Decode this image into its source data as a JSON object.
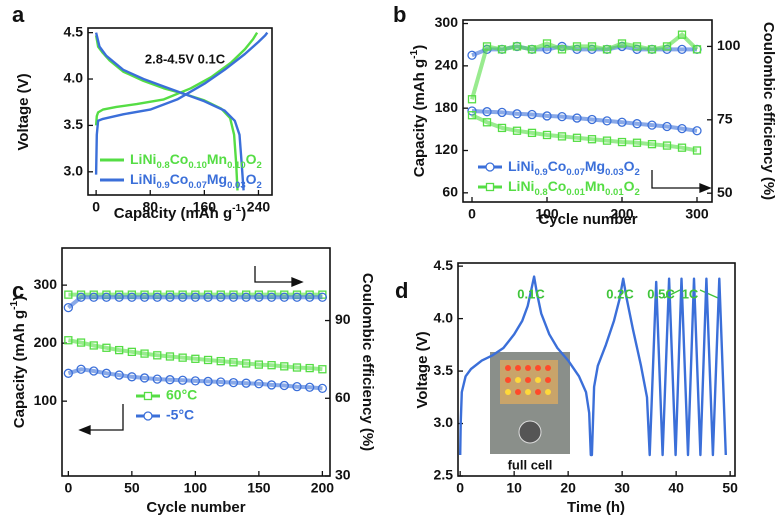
{
  "chart_data": [
    {
      "type": "line",
      "panel_label": "a",
      "xlabel": "Capacity (mAh g-1)",
      "ylabel": "Voltage (V)",
      "annotations": [
        "2.8-4.5V  0.1C"
      ],
      "legend": "lower left",
      "xlim": [
        -12,
        260
      ],
      "xticks": [
        0,
        80,
        160,
        240
      ],
      "ylim": [
        2.75,
        4.55
      ],
      "yticks": [
        {
          "value": 3,
          "label": "3.0"
        },
        3.5,
        {
          "value": 4,
          "label": "4.0"
        },
        4.5
      ],
      "series": [
        {
          "name": "LiNi0.8Co0.10Mn0.10O2",
          "color": "#55dd44",
          "x": [
            0,
            1,
            3,
            10,
            30,
            60,
            100,
            140,
            170,
            200,
            220,
            232,
            238,
            null,
            0,
            3,
            10,
            20,
            40,
            70,
            100,
            130,
            160,
            185,
            198,
            204,
            207,
            209
          ],
          "values": [
            3.5,
            3.6,
            3.64,
            3.67,
            3.7,
            3.73,
            3.78,
            3.9,
            4.02,
            4.18,
            4.32,
            4.43,
            4.5,
            null,
            4.47,
            4.35,
            4.28,
            4.2,
            4.08,
            3.98,
            3.9,
            3.84,
            3.77,
            3.68,
            3.58,
            3.4,
            3.1,
            2.8
          ]
        },
        {
          "name": "LiNi0.9Co0.07Mg0.03O2",
          "color": "#3b6fd9",
          "x": [
            0,
            1,
            3,
            10,
            40,
            80,
            120,
            160,
            190,
            220,
            240,
            250,
            253,
            null,
            0,
            5,
            15,
            40,
            70,
            100,
            130,
            160,
            190,
            205,
            212,
            215,
            217,
            218
          ],
          "values": [
            2.97,
            3.4,
            3.55,
            3.57,
            3.62,
            3.67,
            3.78,
            3.95,
            4.1,
            4.27,
            4.4,
            4.47,
            4.5,
            null,
            4.5,
            4.35,
            4.25,
            4.1,
            4.0,
            3.92,
            3.84,
            3.76,
            3.66,
            3.55,
            3.4,
            3.1,
            2.9,
            2.8
          ]
        }
      ]
    },
    {
      "type": "scatter",
      "panel_label": "b",
      "xlabel": "Cycle number",
      "ylabel": "Capacity (mAh g-1)",
      "y2label": "Coulombic efficiency (%)",
      "legend": "lower left",
      "x": [
        0,
        20,
        40,
        60,
        80,
        100,
        120,
        140,
        160,
        180,
        200,
        220,
        240,
        260,
        280,
        300
      ],
      "xlim": [
        -12,
        320
      ],
      "xticks": [
        0,
        100,
        200,
        300
      ],
      "ylim": [
        47,
        305
      ],
      "yticks": [
        60,
        120,
        180,
        240,
        300
      ],
      "y2lim": [
        47,
        109
      ],
      "y2ticks": [
        50,
        75,
        100
      ],
      "series": [
        {
          "name": "LiNi0.9Co0.07Mg0.03O2",
          "color": "#3b6fd9",
          "marker": "circle",
          "values": [
            176,
            175,
            174,
            172,
            171,
            169,
            168,
            166,
            164,
            162,
            160,
            158,
            156,
            154,
            151,
            148
          ]
        },
        {
          "name": "LiNi0.8Co0.01Mn0.01O2",
          "color": "#55dd44",
          "marker": "square",
          "values": [
            170,
            160,
            152,
            148,
            145,
            142,
            140,
            138,
            136,
            134,
            132,
            131,
            129,
            127,
            124,
            120
          ]
        },
        {
          "color": "#3b6fd9",
          "marker": "circle",
          "axis": "y2",
          "values": [
            97,
            99,
            99,
            100,
            99,
            99,
            100,
            99,
            99,
            99,
            100,
            99,
            99,
            99,
            99,
            99
          ]
        },
        {
          "color": "#55dd44",
          "marker": "square",
          "axis": "y2",
          "values": [
            82,
            100,
            99,
            100,
            99,
            101,
            99,
            100,
            100,
            99,
            101,
            100,
            99,
            100,
            104,
            99
          ]
        }
      ]
    },
    {
      "type": "scatter",
      "panel_label": "c",
      "xlabel": "Cycle number",
      "ylabel": "Capacity (mAh g-1)",
      "y2label": "Coulombic efficiency (%)",
      "legend": "lower center",
      "x": [
        0,
        10,
        20,
        30,
        40,
        50,
        60,
        70,
        80,
        90,
        100,
        110,
        120,
        130,
        140,
        150,
        160,
        170,
        180,
        190,
        200
      ],
      "xlim": [
        -5,
        206
      ],
      "xticks": [
        0,
        50,
        100,
        150,
        200
      ],
      "ylim": [
        -29,
        364
      ],
      "yticks": [
        100,
        200,
        300
      ],
      "y2lim": [
        30,
        118
      ],
      "y2ticks": [
        30,
        60,
        90
      ],
      "series": [
        {
          "name": "60°C",
          "color": "#55dd44",
          "marker": "square",
          "values": [
            205,
            201,
            196,
            192,
            188,
            185,
            182,
            179,
            177,
            175,
            173,
            171,
            169,
            167,
            165,
            163,
            162,
            160,
            158,
            157,
            155
          ]
        },
        {
          "name": "-5°C",
          "color": "#3b6fd9",
          "marker": "circle",
          "values": [
            148,
            155,
            152,
            148,
            145,
            142,
            140,
            138,
            137,
            136,
            135,
            134,
            133,
            132,
            131,
            130,
            128,
            127,
            125,
            124,
            122
          ]
        },
        {
          "color": "#55dd44",
          "marker": "square",
          "axis": "y2",
          "values": [
            100,
            100,
            100,
            100,
            100,
            100,
            100,
            100,
            100,
            100,
            100,
            100,
            100,
            100,
            100,
            100,
            100,
            100,
            100,
            100,
            100
          ]
        },
        {
          "color": "#3b6fd9",
          "marker": "circle",
          "axis": "y2",
          "values": [
            95,
            99,
            99,
            99,
            99,
            99,
            99,
            99,
            99,
            99,
            99,
            99,
            99,
            99,
            99,
            99,
            99,
            99,
            99,
            99,
            99
          ]
        }
      ]
    },
    {
      "type": "line",
      "panel_label": "d",
      "xlabel": "Time (h)",
      "ylabel": "Voltage (V)",
      "annotations": [
        "0.1C",
        "0.2C",
        "0.5C",
        "1C",
        "full cell"
      ],
      "xlim": [
        -0.4,
        50.9
      ],
      "xticks": [
        0,
        10,
        20,
        30,
        40,
        50
      ],
      "ylim": [
        2.5,
        4.53
      ],
      "yticks": [
        2.5,
        {
          "value": 3,
          "label": "3.0"
        },
        3.5,
        {
          "value": 4,
          "label": "4.0"
        },
        4.5
      ],
      "series": [
        {
          "color": "#3b6fd9",
          "x": [
            0,
            0.1,
            0.3,
            1,
            2,
            4,
            6,
            8,
            10,
            11.5,
            12.5,
            13.2,
            13.7,
            14.2,
            15,
            16.5,
            18,
            20,
            22,
            23.3,
            23.9,
            24.2,
            24.4,
            24.8,
            25.5,
            27,
            28.5,
            29.5,
            30.2,
            30.8,
            32,
            33.5,
            34.6,
            35.1,
            36.3,
            37.5,
            38.7,
            39.9,
            41.0,
            42.2,
            43.3,
            44.5,
            45.6,
            46.8,
            48.0,
            49.2
          ],
          "values": [
            2.7,
            3.0,
            3.3,
            3.45,
            3.52,
            3.6,
            3.65,
            3.72,
            3.85,
            3.98,
            4.12,
            4.28,
            4.4,
            4.25,
            4.05,
            3.85,
            3.72,
            3.6,
            3.45,
            3.3,
            3.1,
            2.7,
            2.7,
            3.35,
            3.55,
            3.75,
            3.98,
            4.18,
            4.38,
            4.2,
            3.9,
            3.55,
            3.25,
            2.7,
            4.35,
            2.7,
            4.38,
            2.7,
            4.38,
            2.7,
            4.38,
            2.7,
            4.38,
            2.7,
            4.38,
            2.7
          ]
        }
      ]
    }
  ]
}
